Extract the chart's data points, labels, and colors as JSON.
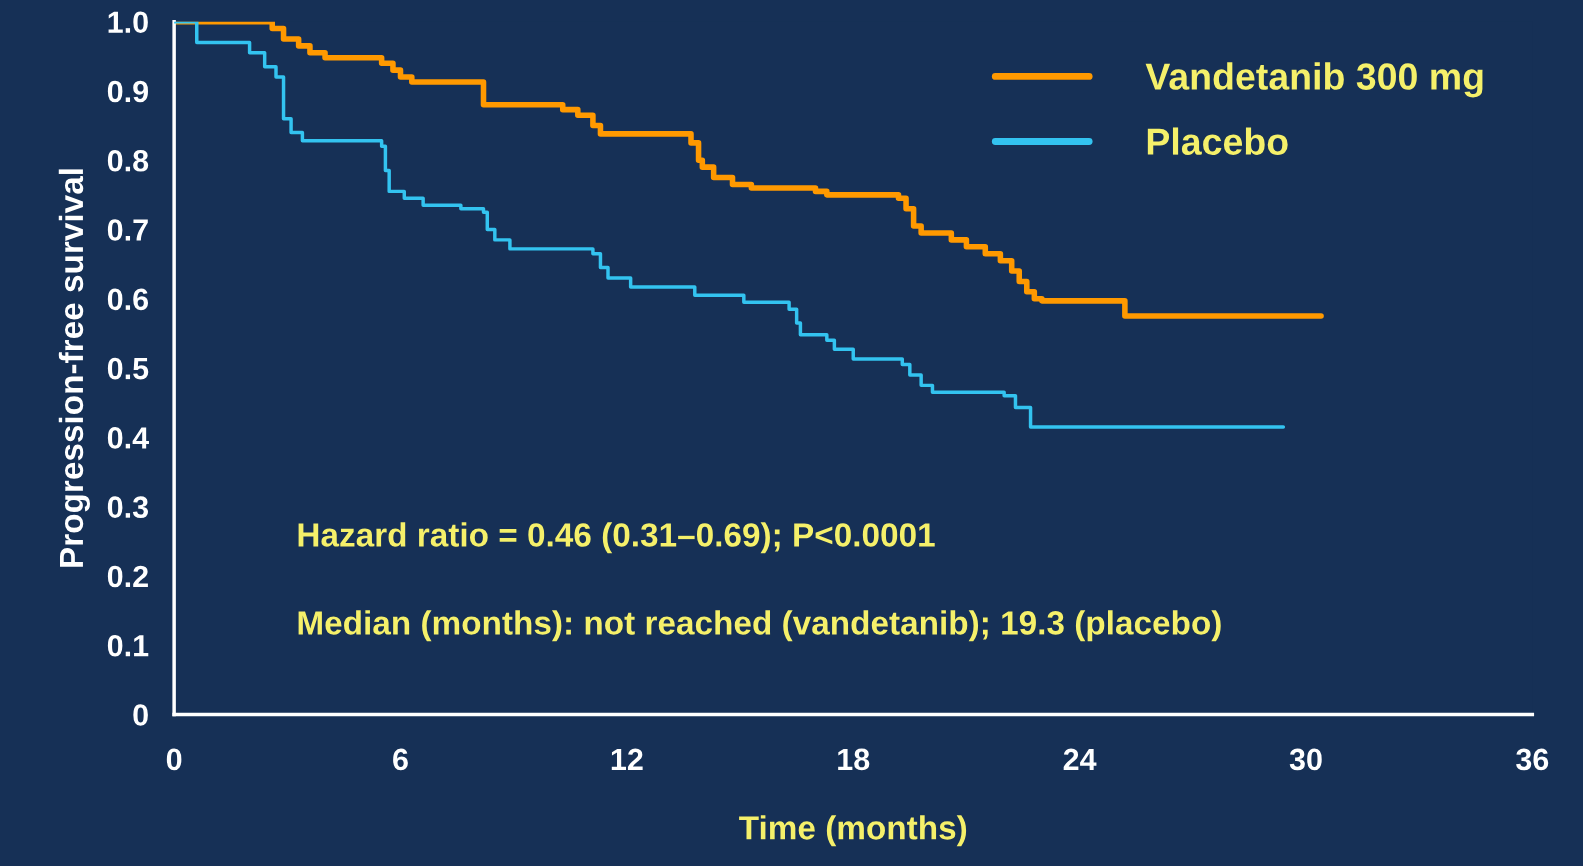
{
  "chart_data": {
    "type": "step",
    "xlabel": "Time (months)",
    "ylabel": "Progression-free survival",
    "xlim": [
      0,
      36
    ],
    "xticks": [
      0,
      6,
      12,
      18,
      24,
      30,
      36
    ],
    "ylim": [
      0,
      1.0
    ],
    "yticks": [
      {
        "value": 0,
        "label": "0"
      },
      0.1,
      0.2,
      0.3,
      0.4,
      0.5,
      0.6,
      0.7,
      0.8,
      0.9,
      {
        "value": 1.0,
        "label": "1.0"
      }
    ],
    "grid": false,
    "legend": "top right",
    "series": [
      {
        "name": "Vandetanib 300 mg",
        "color": "#ff9900",
        "x": [
          0,
          2.6,
          2.9,
          3.3,
          3.6,
          4,
          5.5,
          5.8,
          6,
          6.3,
          8.2,
          10.3,
          10.7,
          11.1,
          11.3,
          13.7,
          13.9,
          14,
          14.3,
          14.8,
          15.3,
          17,
          17.3,
          19.2,
          19.4,
          19.6,
          19.8,
          20.6,
          21,
          21.5,
          21.9,
          22.2,
          22.4,
          22.6,
          22.8,
          23,
          25.2,
          30.4
        ],
        "values": [
          1.0,
          0.99,
          0.975,
          0.965,
          0.955,
          0.948,
          0.94,
          0.93,
          0.92,
          0.913,
          0.88,
          0.873,
          0.865,
          0.85,
          0.838,
          0.825,
          0.8,
          0.79,
          0.775,
          0.765,
          0.76,
          0.755,
          0.75,
          0.745,
          0.73,
          0.705,
          0.695,
          0.685,
          0.675,
          0.665,
          0.655,
          0.64,
          0.625,
          0.61,
          0.6,
          0.597,
          0.575,
          0.575
        ]
      },
      {
        "name": "Placebo",
        "color": "#33c3f0",
        "x": [
          0,
          0.6,
          2,
          2.4,
          2.7,
          2.9,
          3.1,
          3.4,
          5.5,
          5.6,
          5.7,
          6.1,
          6.6,
          7.6,
          8.2,
          8.3,
          8.5,
          8.9,
          11.1,
          11.3,
          11.5,
          12.1,
          13.8,
          15.1,
          16.3,
          16.5,
          16.6,
          17.3,
          17.5,
          18,
          19.3,
          19.5,
          19.8,
          20.1,
          22,
          22.3,
          22.7,
          29.4
        ],
        "values": [
          1.0,
          0.97,
          0.955,
          0.935,
          0.92,
          0.86,
          0.84,
          0.828,
          0.82,
          0.785,
          0.755,
          0.745,
          0.735,
          0.73,
          0.725,
          0.7,
          0.685,
          0.672,
          0.665,
          0.645,
          0.63,
          0.617,
          0.605,
          0.595,
          0.585,
          0.565,
          0.548,
          0.54,
          0.527,
          0.513,
          0.505,
          0.49,
          0.475,
          0.465,
          0.46,
          0.443,
          0.415,
          0.415
        ]
      }
    ],
    "annotations": [
      "Hazard ratio = 0.46 (0.31–0.69); P<0.0001",
      "Median (months): not reached (vandetanib); 19.3 (placebo)"
    ]
  }
}
